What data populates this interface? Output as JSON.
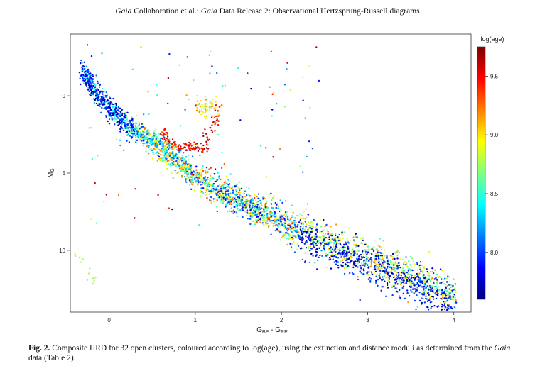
{
  "header": {
    "prefix_italic": "Gaia",
    "mid": " Collaboration et al.: ",
    "italic2": "Gaia",
    "rest": " Data Release 2: Observational Hertzsprung-Russell diagrams"
  },
  "caption": {
    "label": "Fig. 2.",
    "text_a": " Composite HRD for 32 open clusters, coloured according to log(age), using the extinction and distance moduli as determined from the ",
    "italic": "Gaia",
    "text_b": " data (Table 2)."
  },
  "chart_data": {
    "type": "scatter",
    "title": "",
    "xlabel": "G",
    "xlabel_sub1": "BP",
    "xlabel_mid": " - G",
    "xlabel_sub2": "RP",
    "ylabel": "M",
    "ylabel_sub": "G",
    "xlim": [
      -0.45,
      4.2
    ],
    "ylim": [
      14.0,
      -4.0
    ],
    "y_inverted": true,
    "xticks": [
      0,
      1,
      2,
      3,
      4
    ],
    "yticks": [
      0,
      5,
      10
    ],
    "grid": false,
    "colorbar": {
      "title": "log(age)",
      "range": [
        7.6,
        9.75
      ],
      "ticks": [
        8.0,
        8.5,
        9.0,
        9.5
      ],
      "tick_labels": [
        "8.0",
        "8.5",
        "9.0",
        "9.5"
      ],
      "colormap": "jet"
    },
    "series_description": "main sequence with turnoff and red giant branch, coloured by log(age)",
    "main_sequence": {
      "x": [
        -0.3,
        -0.15,
        0.0,
        0.2,
        0.45,
        0.7,
        1.0,
        1.3,
        1.6,
        1.9,
        2.2,
        2.5,
        2.8,
        3.1,
        3.4,
        3.8,
        4.1
      ],
      "y": [
        -1.5,
        -0.2,
        0.8,
        1.8,
        2.8,
        3.8,
        5.2,
        6.2,
        7.0,
        7.9,
        8.8,
        9.6,
        10.3,
        10.9,
        11.6,
        12.6,
        13.6
      ]
    },
    "giant_branch": {
      "x": [
        0.62,
        0.7,
        0.8,
        0.95,
        1.1,
        1.2,
        1.25
      ],
      "y": [
        2.3,
        3.0,
        3.3,
        3.3,
        3.4,
        2.0,
        0.8
      ]
    },
    "red_clump": {
      "x": 1.15,
      "y": 0.7
    },
    "white_dwarfs": {
      "x": [
        -0.35,
        -0.25,
        -0.18
      ],
      "y": [
        10.7,
        11.3,
        11.9
      ]
    }
  }
}
